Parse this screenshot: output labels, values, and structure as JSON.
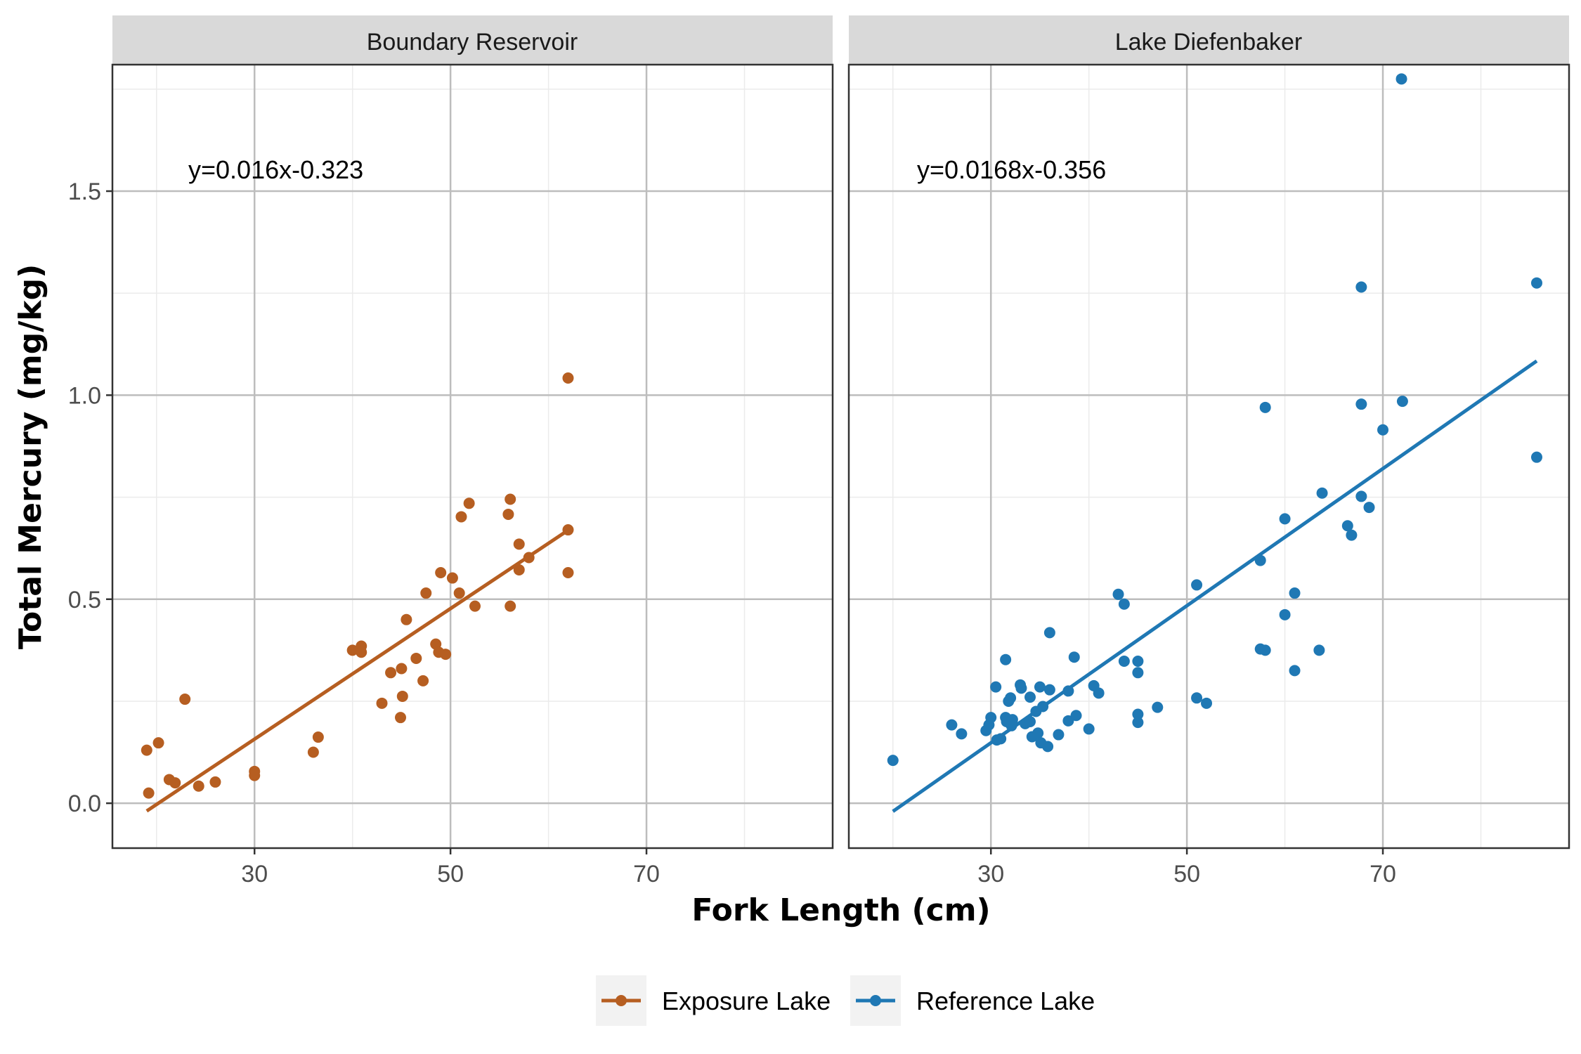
{
  "chart_data": {
    "type": "scatter",
    "xlabel": "Fork Length (cm)",
    "ylabel": "Total Mercury (mg/kg)",
    "xlim": [
      15.5,
      89.0
    ],
    "ylim": [
      -0.11,
      1.81
    ],
    "x_ticks": [
      30,
      50,
      70
    ],
    "x_minor": [
      20,
      40,
      60,
      80
    ],
    "y_ticks": [
      0.0,
      0.5,
      1.0,
      1.5
    ],
    "y_tick_labels": [
      "0.0",
      "0.5",
      "1.0",
      "1.5"
    ],
    "y_minor": [
      0.25,
      0.75,
      1.25,
      1.75
    ],
    "grid": true,
    "legend_position": "bottom",
    "panels": [
      {
        "strip": "Boundary Reservoir",
        "series": "Exposure Lake",
        "color": "#b65e21",
        "annotation": "y=0.016x-0.323",
        "fit": {
          "slope": 0.016,
          "intercept": -0.323,
          "x_range": [
            19.0,
            62.0
          ]
        },
        "points": [
          [
            19.0,
            0.13
          ],
          [
            19.2,
            0.025
          ],
          [
            20.2,
            0.148
          ],
          [
            21.3,
            0.058
          ],
          [
            21.9,
            0.05
          ],
          [
            22.9,
            0.255
          ],
          [
            24.3,
            0.042
          ],
          [
            26.0,
            0.052
          ],
          [
            30.0,
            0.078
          ],
          [
            30.0,
            0.068
          ],
          [
            36.0,
            0.125
          ],
          [
            36.5,
            0.162
          ],
          [
            40.0,
            0.375
          ],
          [
            40.9,
            0.385
          ],
          [
            40.9,
            0.37
          ],
          [
            43.0,
            0.245
          ],
          [
            43.9,
            0.32
          ],
          [
            44.9,
            0.21
          ],
          [
            45.0,
            0.33
          ],
          [
            45.1,
            0.262
          ],
          [
            45.5,
            0.45
          ],
          [
            46.5,
            0.355
          ],
          [
            47.2,
            0.3
          ],
          [
            47.5,
            0.515
          ],
          [
            48.5,
            0.39
          ],
          [
            48.8,
            0.37
          ],
          [
            49.0,
            0.565
          ],
          [
            49.5,
            0.365
          ],
          [
            50.2,
            0.552
          ],
          [
            50.9,
            0.515
          ],
          [
            51.1,
            0.702
          ],
          [
            51.9,
            0.735
          ],
          [
            52.5,
            0.483
          ],
          [
            55.9,
            0.708
          ],
          [
            56.1,
            0.745
          ],
          [
            56.1,
            0.483
          ],
          [
            57.0,
            0.635
          ],
          [
            57.0,
            0.572
          ],
          [
            58.0,
            0.602
          ],
          [
            62.0,
            1.042
          ],
          [
            62.0,
            0.67
          ],
          [
            62.0,
            0.565
          ]
        ]
      },
      {
        "strip": "Lake Diefenbaker",
        "series": "Reference Lake",
        "color": "#1f78b4",
        "annotation": "y=0.0168x-0.356",
        "fit": {
          "slope": 0.0168,
          "intercept": -0.356,
          "x_range": [
            20.0,
            85.7
          ]
        },
        "points": [
          [
            20.0,
            0.105
          ],
          [
            26.0,
            0.192
          ],
          [
            27.0,
            0.17
          ],
          [
            29.5,
            0.178
          ],
          [
            29.8,
            0.192
          ],
          [
            30.0,
            0.21
          ],
          [
            30.5,
            0.285
          ],
          [
            30.6,
            0.155
          ],
          [
            31.0,
            0.158
          ],
          [
            31.5,
            0.352
          ],
          [
            31.5,
            0.21
          ],
          [
            31.6,
            0.2
          ],
          [
            31.8,
            0.25
          ],
          [
            32.0,
            0.258
          ],
          [
            32.1,
            0.19
          ],
          [
            32.2,
            0.205
          ],
          [
            33.0,
            0.29
          ],
          [
            33.1,
            0.282
          ],
          [
            33.5,
            0.195
          ],
          [
            34.0,
            0.26
          ],
          [
            34.0,
            0.2
          ],
          [
            34.2,
            0.163
          ],
          [
            34.6,
            0.225
          ],
          [
            34.8,
            0.172
          ],
          [
            35.0,
            0.285
          ],
          [
            35.1,
            0.148
          ],
          [
            35.3,
            0.237
          ],
          [
            35.8,
            0.139
          ],
          [
            36.0,
            0.418
          ],
          [
            36.0,
            0.278
          ],
          [
            36.9,
            0.168
          ],
          [
            37.9,
            0.202
          ],
          [
            37.9,
            0.275
          ],
          [
            38.5,
            0.358
          ],
          [
            38.7,
            0.215
          ],
          [
            40.0,
            0.182
          ],
          [
            40.5,
            0.288
          ],
          [
            41.0,
            0.27
          ],
          [
            43.0,
            0.512
          ],
          [
            43.6,
            0.488
          ],
          [
            43.6,
            0.348
          ],
          [
            45.0,
            0.348
          ],
          [
            45.0,
            0.32
          ],
          [
            45.0,
            0.218
          ],
          [
            45.0,
            0.198
          ],
          [
            47.0,
            0.235
          ],
          [
            51.0,
            0.535
          ],
          [
            51.0,
            0.258
          ],
          [
            52.0,
            0.245
          ],
          [
            57.5,
            0.595
          ],
          [
            57.5,
            0.378
          ],
          [
            58.0,
            0.375
          ],
          [
            58.0,
            0.97
          ],
          [
            60.0,
            0.697
          ],
          [
            60.0,
            0.462
          ],
          [
            61.0,
            0.515
          ],
          [
            61.0,
            0.325
          ],
          [
            63.5,
            0.375
          ],
          [
            63.8,
            0.76
          ],
          [
            66.4,
            0.68
          ],
          [
            66.8,
            0.657
          ],
          [
            67.8,
            1.265
          ],
          [
            67.8,
            0.978
          ],
          [
            67.8,
            0.752
          ],
          [
            68.6,
            0.725
          ],
          [
            70.0,
            0.915
          ],
          [
            71.9,
            1.775
          ],
          [
            72.0,
            0.985
          ],
          [
            85.7,
            1.275
          ],
          [
            85.7,
            0.848
          ]
        ]
      }
    ],
    "legend": [
      {
        "label": "Exposure Lake",
        "color": "#b65e21"
      },
      {
        "label": "Reference Lake",
        "color": "#1f78b4"
      }
    ]
  }
}
